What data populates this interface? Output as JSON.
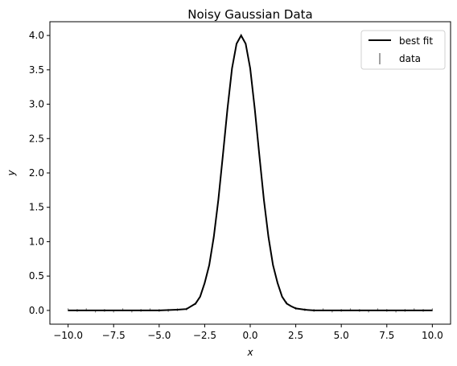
{
  "chart_data": {
    "type": "line",
    "title": "Noisy Gaussian Data",
    "xlabel": "x",
    "ylabel": "y",
    "xlim": [
      -11.0,
      11.0
    ],
    "ylim": [
      -0.2,
      4.2
    ],
    "xticks": [
      -10,
      -7.5,
      -5,
      -2.5,
      0,
      2.5,
      5,
      7.5,
      10
    ],
    "xtick_labels": [
      "−10.0",
      "−7.5",
      "−5.0",
      "−2.5",
      "0.0",
      "2.5",
      "5.0",
      "7.5",
      "10.0"
    ],
    "yticks": [
      0,
      0.5,
      1,
      1.5,
      2,
      2.5,
      3,
      3.5,
      4
    ],
    "ytick_labels": [
      "0.0",
      "0.5",
      "1.0",
      "1.5",
      "2.0",
      "2.5",
      "3.0",
      "3.5",
      "4.0"
    ],
    "grid": false,
    "legend_position": "top-right",
    "series": [
      {
        "name": "best fit",
        "kind": "line",
        "color": "#000000",
        "x": [
          -10,
          -9,
          -8,
          -7,
          -6,
          -5,
          -4,
          -3.5,
          -3,
          -2.75,
          -2.5,
          -2.25,
          -2,
          -1.75,
          -1.5,
          -1.25,
          -1,
          -0.75,
          -0.5,
          -0.25,
          0,
          0.25,
          0.5,
          0.75,
          1,
          1.25,
          1.5,
          1.75,
          2,
          2.25,
          2.5,
          3,
          3.5,
          4,
          5,
          6,
          7,
          8,
          9,
          10
        ],
        "y": [
          0,
          0,
          0,
          0,
          0,
          0,
          0.01,
          0.02,
          0.1,
          0.2,
          0.4,
          0.66,
          1.07,
          1.61,
          2.26,
          2.93,
          3.52,
          3.88,
          4.0,
          3.88,
          3.52,
          2.93,
          2.26,
          1.61,
          1.07,
          0.66,
          0.4,
          0.2,
          0.1,
          0.06,
          0.03,
          0.01,
          0,
          0,
          0,
          0,
          0,
          0,
          0,
          0
        ]
      },
      {
        "name": "data",
        "kind": "errorbar",
        "color": "#808080",
        "x": [
          -10,
          -9.5,
          -9,
          -8.5,
          -8,
          -7.5,
          -7,
          -6.5,
          -6,
          -5.5,
          -5,
          -4.5,
          -4,
          -3.5,
          -3,
          -2.5,
          -2,
          -1.5,
          -1,
          -0.5,
          0,
          0.5,
          1,
          1.5,
          2,
          2.5,
          3,
          3.5,
          4,
          4.5,
          5,
          5.5,
          6,
          6.5,
          7,
          7.5,
          8,
          8.5,
          9,
          9.5,
          10
        ],
        "y": [
          0.01,
          0.0,
          0.01,
          -0.01,
          0.0,
          -0.01,
          0.01,
          -0.01,
          0.0,
          0.01,
          0.0,
          0.0,
          0.01,
          0.02,
          0.1,
          0.41,
          1.06,
          2.27,
          3.52,
          4.0,
          3.51,
          2.25,
          1.08,
          0.41,
          0.11,
          0.03,
          0.01,
          0.0,
          0.01,
          -0.01,
          0.0,
          0.01,
          0.0,
          -0.01,
          0.01,
          0.0,
          -0.01,
          0.0,
          0.01,
          0.0,
          0.01
        ],
        "yerr": [
          0.02,
          0.02,
          0.02,
          0.02,
          0.02,
          0.02,
          0.02,
          0.02,
          0.02,
          0.02,
          0.02,
          0.02,
          0.02,
          0.02,
          0.02,
          0.02,
          0.02,
          0.02,
          0.02,
          0.02,
          0.02,
          0.02,
          0.02,
          0.02,
          0.02,
          0.02,
          0.02,
          0.02,
          0.02,
          0.02,
          0.02,
          0.02,
          0.02,
          0.02,
          0.02,
          0.02,
          0.02,
          0.02,
          0.02,
          0.02,
          0.02
        ]
      }
    ]
  }
}
